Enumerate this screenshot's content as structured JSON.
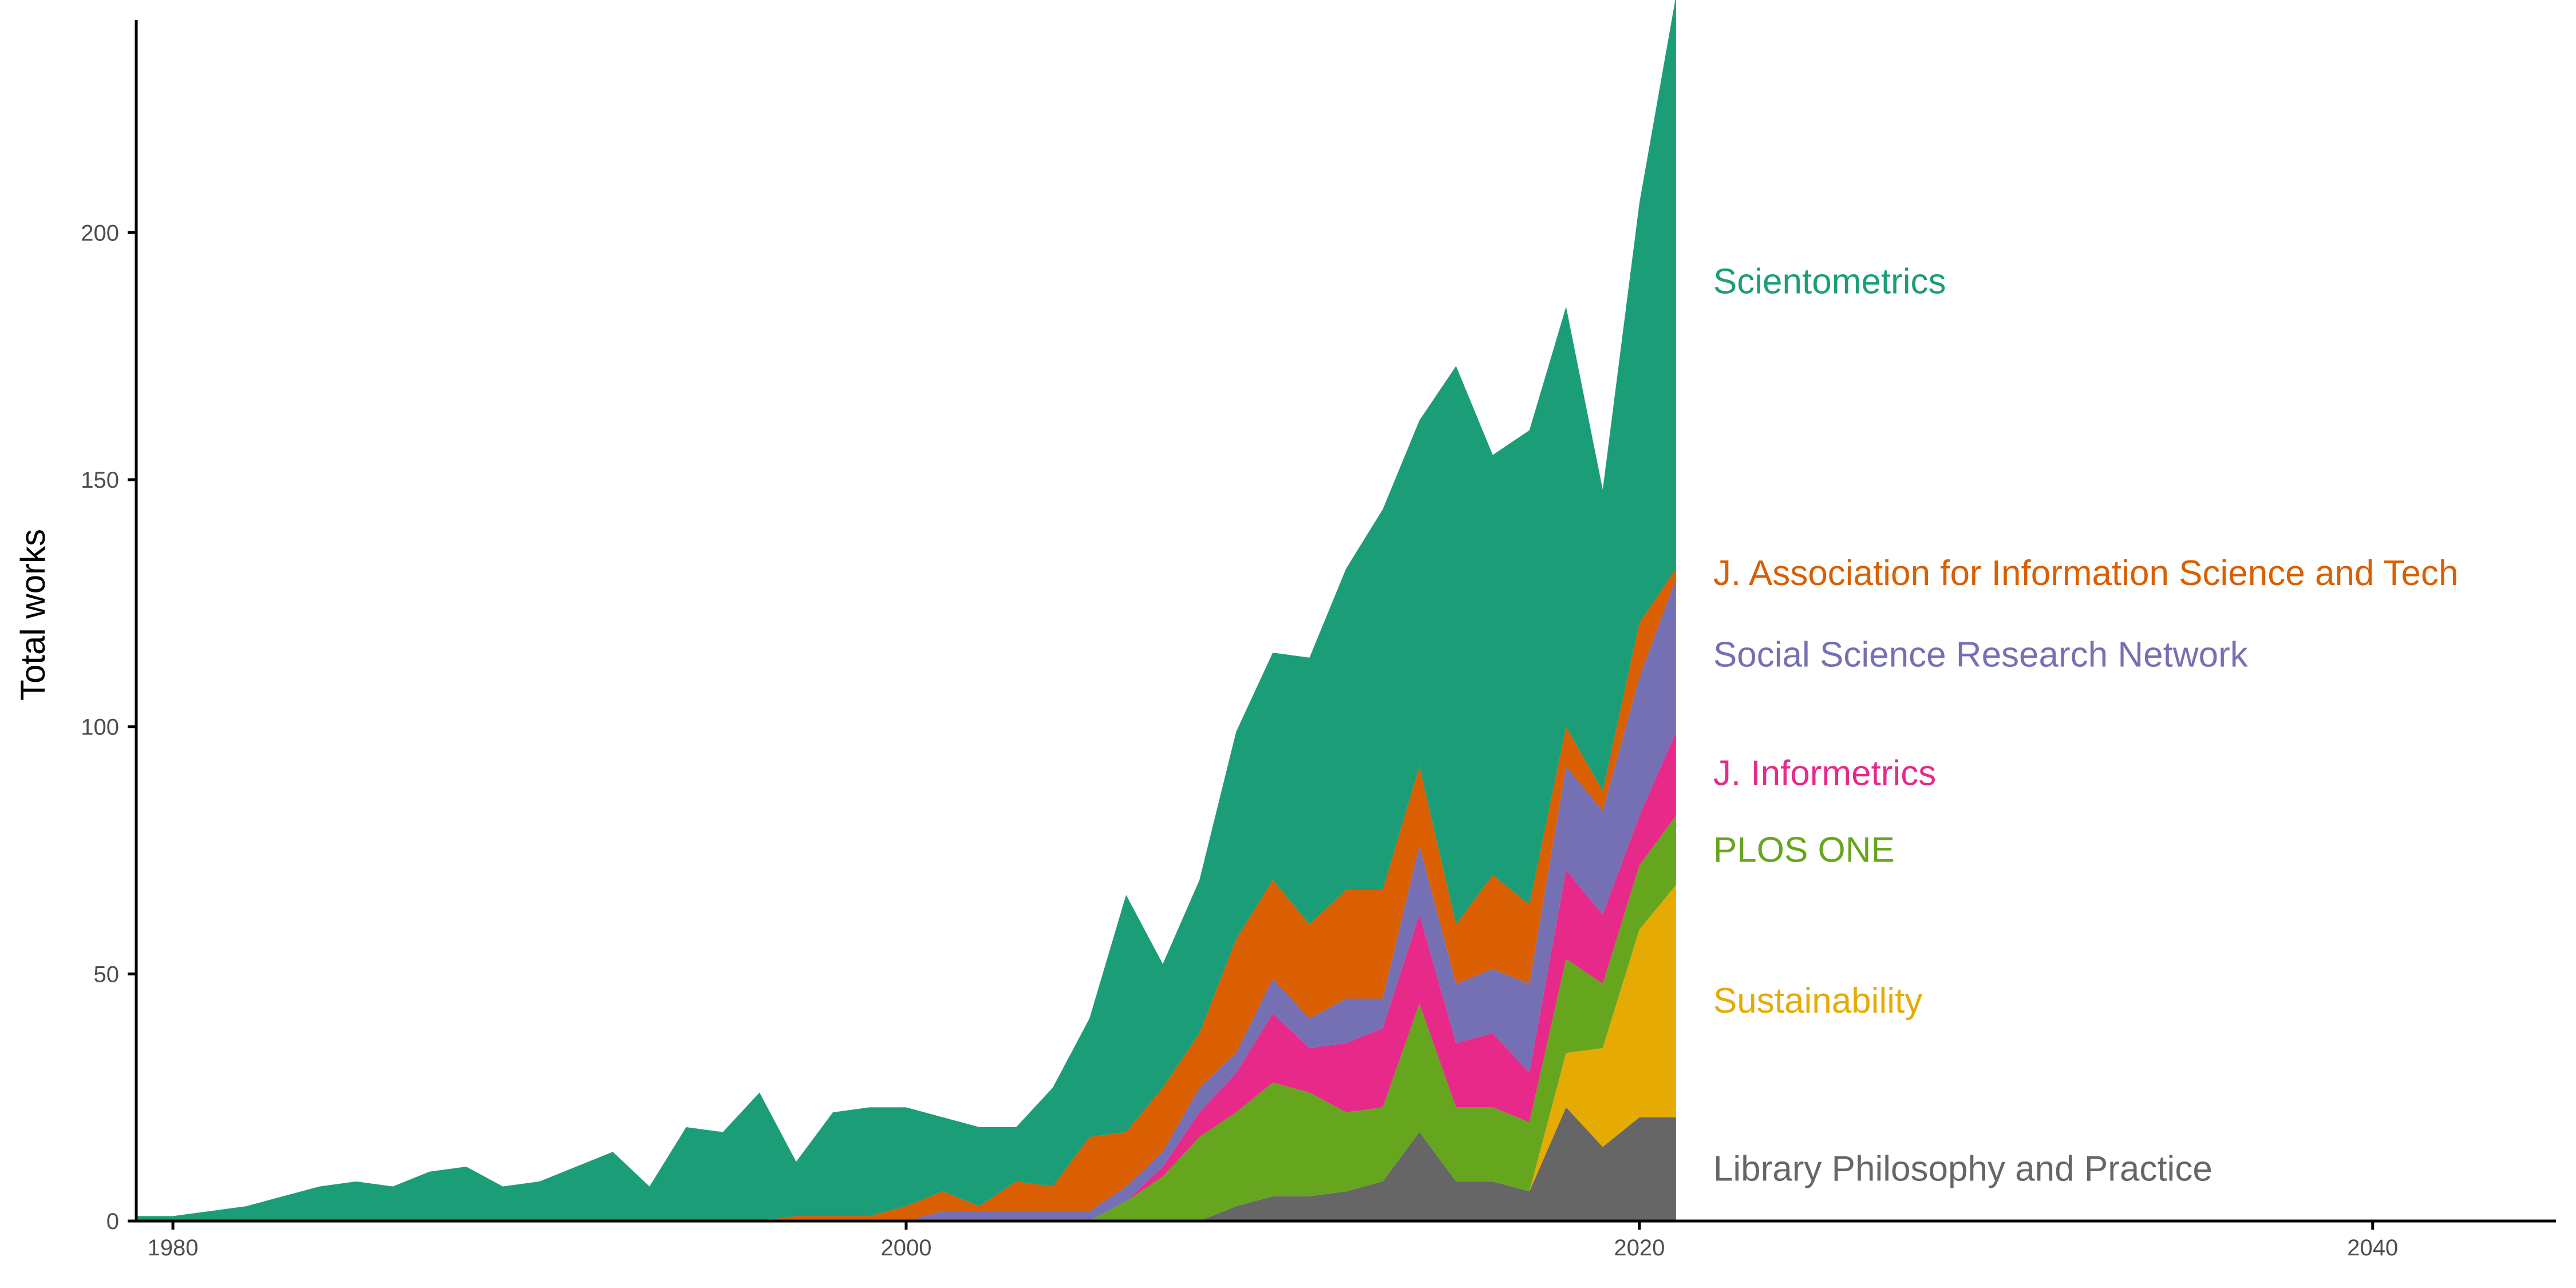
{
  "chart_data": {
    "type": "area",
    "stacked": true,
    "title": "",
    "xlabel": "",
    "ylabel": "Total works",
    "xlim": [
      1979,
      2045
    ],
    "ylim": [
      0,
      243
    ],
    "x_ticks": [
      1980,
      2000,
      2020,
      2040
    ],
    "y_ticks": [
      0,
      50,
      100,
      150,
      200
    ],
    "grid": false,
    "legend": "direct labels at right end of series",
    "x": [
      1979,
      1980,
      1981,
      1982,
      1983,
      1984,
      1985,
      1986,
      1987,
      1988,
      1989,
      1990,
      1991,
      1992,
      1993,
      1994,
      1995,
      1996,
      1997,
      1998,
      1999,
      2000,
      2001,
      2002,
      2003,
      2004,
      2005,
      2006,
      2007,
      2008,
      2009,
      2010,
      2011,
      2012,
      2013,
      2014,
      2015,
      2016,
      2017,
      2018,
      2019,
      2020,
      2021
    ],
    "series": [
      {
        "name": "Library Philosophy and Practice",
        "color": "#666666",
        "values": [
          0,
          0,
          0,
          0,
          0,
          0,
          0,
          0,
          0,
          0,
          0,
          0,
          0,
          0,
          0,
          0,
          0,
          0,
          0,
          0,
          0,
          0,
          0,
          0,
          0,
          0,
          0,
          0,
          0,
          0,
          3,
          5,
          5,
          6,
          8,
          18,
          8,
          8,
          6,
          23,
          15,
          21,
          21
        ]
      },
      {
        "name": "Sustainability",
        "color": "#E6AB02",
        "values": [
          0,
          0,
          0,
          0,
          0,
          0,
          0,
          0,
          0,
          0,
          0,
          0,
          0,
          0,
          0,
          0,
          0,
          0,
          0,
          0,
          0,
          0,
          0,
          0,
          0,
          0,
          0,
          0,
          0,
          0,
          0,
          0,
          0,
          0,
          0,
          0,
          0,
          0,
          0,
          11,
          20,
          38,
          47
        ]
      },
      {
        "name": "PLOS ONE",
        "color": "#66A61E",
        "values": [
          0,
          0,
          0,
          0,
          0,
          0,
          0,
          0,
          0,
          0,
          0,
          0,
          0,
          0,
          0,
          0,
          0,
          0,
          0,
          0,
          0,
          0,
          0,
          0,
          0,
          0,
          0,
          4,
          9,
          17,
          19,
          23,
          21,
          16,
          15,
          26,
          15,
          15,
          14,
          19,
          13,
          13,
          14
        ]
      },
      {
        "name": "J. Informetrics",
        "color": "#E7298A",
        "values": [
          0,
          0,
          0,
          0,
          0,
          0,
          0,
          0,
          0,
          0,
          0,
          0,
          0,
          0,
          0,
          0,
          0,
          0,
          0,
          0,
          0,
          0,
          0,
          0,
          0,
          0,
          0,
          0,
          2,
          5,
          8,
          14,
          9,
          14,
          16,
          18,
          13,
          15,
          10,
          18,
          14,
          10,
          17
        ]
      },
      {
        "name": "Social Science Research Network",
        "color": "#7570B3",
        "values": [
          0,
          0,
          0,
          0,
          0,
          0,
          0,
          0,
          0,
          0,
          0,
          0,
          0,
          0,
          0,
          0,
          0,
          0,
          0,
          0,
          0,
          0,
          2,
          2,
          2,
          2,
          2,
          3,
          3,
          5,
          4,
          7,
          6,
          9,
          6,
          14,
          12,
          13,
          18,
          21,
          21,
          28,
          31
        ]
      },
      {
        "name": "J. Association for Information Science and Tech",
        "color": "#D95F02",
        "values": [
          0,
          0,
          0,
          0,
          0,
          0,
          0,
          0,
          0,
          0,
          0,
          0,
          0,
          0,
          0,
          0,
          0,
          0,
          1,
          1,
          1,
          3,
          4,
          1,
          6,
          5,
          15,
          11,
          13,
          11,
          23,
          20,
          19,
          22,
          22,
          16,
          12,
          19,
          16,
          8,
          4,
          11,
          2
        ]
      },
      {
        "name": "Scientometrics",
        "color": "#1B9E77",
        "values": [
          1,
          1,
          2,
          3,
          5,
          7,
          8,
          7,
          10,
          11,
          7,
          8,
          11,
          14,
          7,
          19,
          18,
          26,
          11,
          21,
          22,
          20,
          15,
          16,
          11,
          20,
          24,
          48,
          25,
          31,
          42,
          46,
          54,
          65,
          77,
          70,
          113,
          85,
          96,
          85,
          61,
          85,
          116
        ]
      }
    ]
  }
}
